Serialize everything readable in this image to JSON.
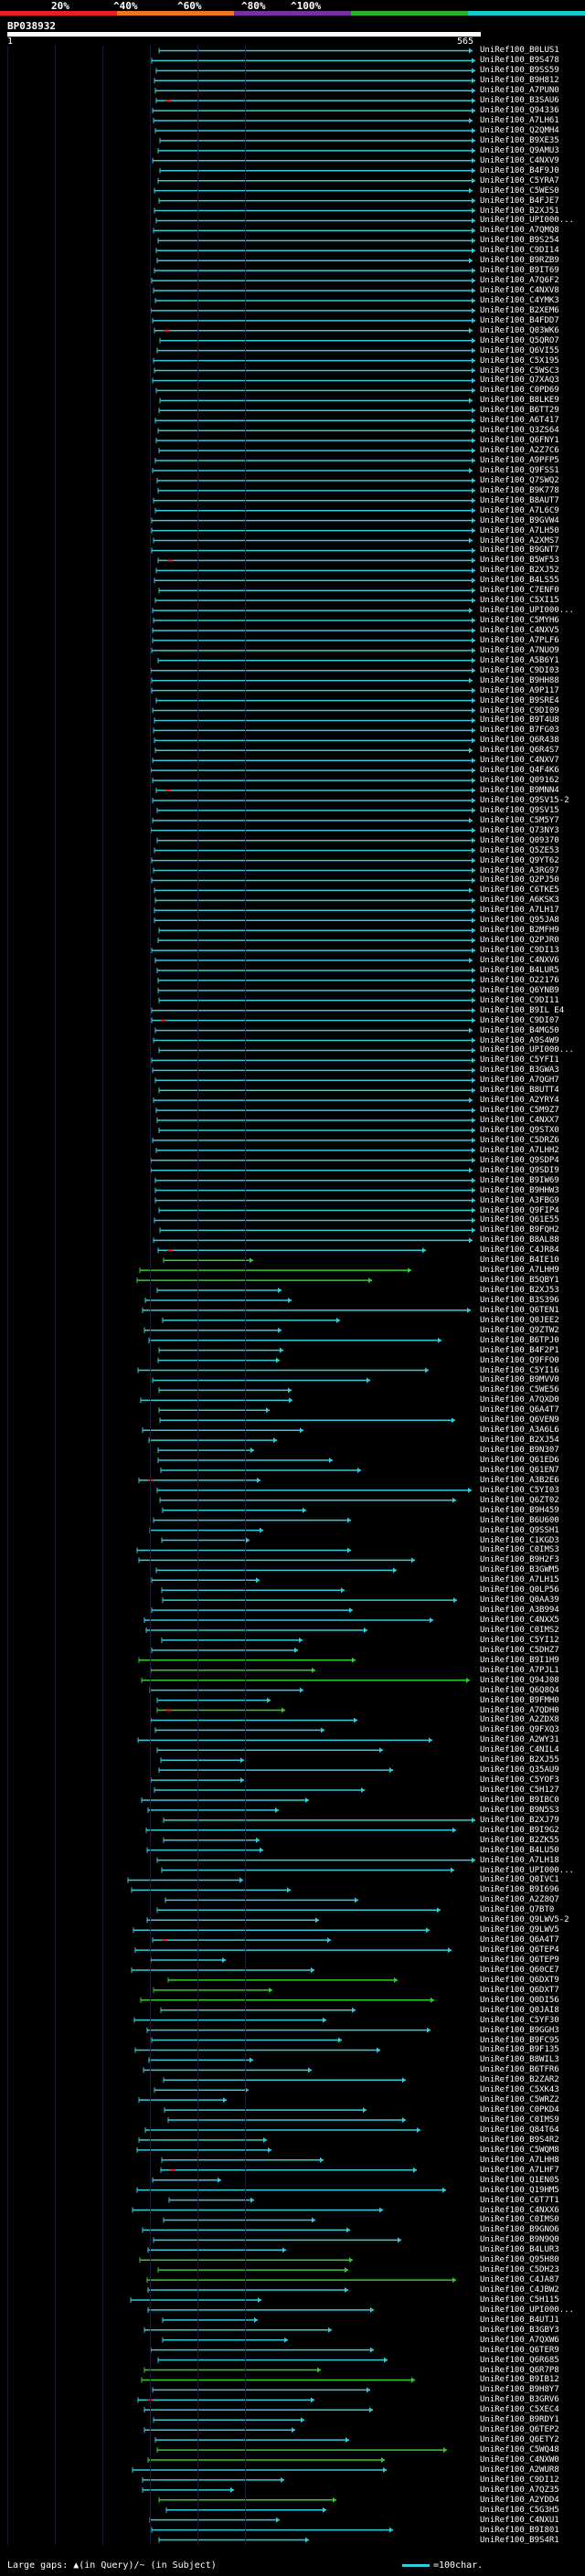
{
  "scale": {
    "ticks": [
      "20%",
      "^40%",
      "^60%",
      "^80%",
      "^100%"
    ],
    "segments": [
      "#e8202a",
      "#ee7722",
      "#7a2fa0",
      "#2ab02a",
      "#18c8cc"
    ]
  },
  "query": {
    "name": "BP038932",
    "start": "1",
    "end": "565"
  },
  "hits": {
    "labels": [
      "UniRef100_B0LUS1",
      "UniRef100_B9S478",
      "UniRef100_B9SS59",
      "UniRef100_B9H812",
      "UniRef100_A7PUN0",
      "UniRef100_B3SAU6",
      "UniRef100_Q94336",
      "UniRef100_A7LH61",
      "UniRef100_Q2QMH4",
      "UniRef100_B9XE35",
      "UniRef100_Q9AMU3",
      "UniRef100_C4NXV9",
      "UniRef100_B4F9J0",
      "UniRef100_C5YRA7",
      "UniRef100_C5WES0",
      "UniRef100_B4FJE7",
      "UniRef100_B2XJ51",
      "UniRef100_UPI000...",
      "UniRef100_A7QMQ8",
      "UniRef100_B9S254",
      "UniRef100_C9DI14",
      "UniRef100_B9RZB9",
      "UniRef100_B9IT69",
      "UniRef100_A7Q6F2",
      "UniRef100_C4NXV8",
      "UniRef100_C4YMK3",
      "UniRef100_B2XEM6",
      "UniRef100_B4FDD7",
      "UniRef100_Q03WK6",
      "UniRef100_Q5QRO7",
      "UniRef100_Q6VI55",
      "UniRef100_C5X195",
      "UniRef100_C5WSC3",
      "UniRef100_Q7XAQ3",
      "UniRef100_C0PD69",
      "UniRef100_B8LKE9",
      "UniRef100_B6TT29",
      "UniRef100_A6T417",
      "UniRef100_Q3ZS64",
      "UniRef100_Q6FNY1",
      "UniRef100_A2Z7C6",
      "UniRef100_A9PFP5",
      "UniRef100_Q9FSS1",
      "UniRef100_Q7SWQ2",
      "UniRef100_B9K778",
      "UniRef100_B8AUT7",
      "UniRef100_A7L6C9",
      "UniRef100_B9GVW4",
      "UniRef100_A7LH50",
      "UniRef100_A2XMS7",
      "UniRef100_B9GNT7",
      "UniRef100_B5WF53",
      "UniRef100_B2XJ52",
      "UniRef100_B4LS55",
      "UniRef100_C7ENF0",
      "UniRef100_C5XI15",
      "UniRef100_UPI000...",
      "UniRef100_C5MYH6",
      "UniRef100_C4NXV5",
      "UniRef100_A7PLF6",
      "UniRef100_A7NUO9",
      "UniRef100_A5B6Y1",
      "UniRef100_C9DI03",
      "UniRef100_B9HH88",
      "UniRef100_A9P117",
      "UniRef100_B9SRE4",
      "UniRef100_C9DI09",
      "UniRef100_B9T4U8",
      "UniRef100_B7FG03",
      "UniRef100_Q6R438",
      "UniRef100_Q6R4S7",
      "UniRef100_C4NXV7",
      "UniRef100_Q4F4K6",
      "UniRef100_Q09162",
      "UniRef100_B9MNN4",
      "UniRef100_Q9SV15-2",
      "UniRef100_Q9SV15",
      "UniRef100_C5M5Y7",
      "UniRef100_Q73NY3",
      "UniRef100_Q09370",
      "UniRef100_Q5ZE53",
      "UniRef100_Q9YT62",
      "UniRef100_A3RG97",
      "UniRef100_Q2PJ50",
      "UniRef100_C6TKE5",
      "UniRef100_A6KSK3",
      "UniRef100_A7LH17",
      "UniRef100_Q95JA8",
      "UniRef100_B2MFH9",
      "UniRef100_Q2PJR0",
      "UniRef100_C9DI13",
      "UniRef100_C4NXV6",
      "UniRef100_B4LUR5",
      "UniRef100_O22176",
      "UniRef100_Q6YNB9",
      "UniRef100_C9DI11",
      "UniRef100_B9IL E4",
      "UniRef100_C9DI07",
      "UniRef100_B4MG50",
      "UniRef100_A9S4W9",
      "UniRef100_UPI000...",
      "UniRef100_C5YFI1",
      "UniRef100_B3GWA3",
      "UniRef100_A7QGH7",
      "UniRef100_B8UTT4",
      "UniRef100_A2YRY4",
      "UniRef100_C5M9Z7",
      "UniRef100_C4NXX7",
      "UniRef100_Q9STX0",
      "UniRef100_C5DRZ6",
      "UniRef100_A7LHH2",
      "UniRef100_Q9SDP4",
      "UniRef100_Q9SDI9",
      "UniRef100_B9IW69",
      "UniRef100_B9HHW3",
      "UniRef100_A3FBG9",
      "UniRef100_Q9FIP4",
      "UniRef100_Q61E55",
      "UniRef100_B9FQH2",
      "UniRef100_B8AL88",
      "UniRef100_C4JR84",
      "UniRef100_B4IE10",
      "UniRef100_A7LHH9",
      "UniRef100_B5QBY1",
      "UniRef100_B2XJ53",
      "UniRef100_B3S396",
      "UniRef100_Q6TEN1",
      "UniRef100_Q0JEE2",
      "UniRef100_Q9ZTW2",
      "UniRef100_B6TPJ0",
      "UniRef100_B4F2P1",
      "UniRef100_Q9FFO0",
      "UniRef100_C5YI16",
      "UniRef100_B9MVV0",
      "UniRef100_C5WE56",
      "UniRef100_A7QXD0",
      "UniRef100_Q6A4T7",
      "UniRef100_Q6VEN9",
      "UniRef100_A3A6L6",
      "UniRef100_B2XJ54",
      "UniRef100_B9N307",
      "UniRef100_Q61ED6",
      "UniRef100_Q61EN7",
      "UniRef100_A3B2E6",
      "UniRef100_C5YI03",
      "UniRef100_Q6ZT02",
      "UniRef100_B9H459",
      "UniRef100_B6U600",
      "UniRef100_Q9SSH1",
      "UniRef100_C1KGD3",
      "UniRef100_C0IMS3",
      "UniRef100_B9H2F3",
      "UniRef100_B3GWM5",
      "UniRef100_A7LH15",
      "UniRef100_Q0LP56",
      "UniRef100_Q0AA39",
      "UniRef100_A3B994",
      "UniRef100_C4NXX5",
      "UniRef100_C0IMS2",
      "UniRef100_C5YI12",
      "UniRef100_C5DHZ7",
      "UniRef100_B9I1H9",
      "UniRef100_A7PJL1",
      "UniRef100_Q94J08",
      "UniRef100_Q6Q8Q4",
      "UniRef100_B9FMH0",
      "UniRef100_A7QDH0",
      "UniRef100_A2ZDX8",
      "UniRef100_Q9FXQ3",
      "UniRef100_A2WY31",
      "UniRef100_C4NIL4",
      "UniRef100_B2XJ55",
      "UniRef100_Q35AU9",
      "UniRef100_C5YOF3",
      "UniRef100_C5H127",
      "UniRef100_B9IBC0",
      "UniRef100_B9N5S3",
      "UniRef100_B2XJ79",
      "UniRef100_B9I9G2",
      "UniRef100_B2ZK55",
      "UniRef100_B4LU50",
      "UniRef100_A7LH18",
      "UniRef100_UPI000...",
      "UniRef100_Q0IVC1",
      "UniRef100_B9I696",
      "UniRef100_A2Z8Q7",
      "UniRef100_Q7BT0",
      "UniRef100_Q9LWV5-2",
      "UniRef100_Q9LWV5",
      "UniRef100_Q6A4T7",
      "UniRef100_Q6TEP4",
      "UniRef100_Q6TEP9",
      "UniRef100_Q60CE7",
      "UniRef100_Q6DXT9",
      "UniRef100_Q6DXT7",
      "UniRef100_Q0DI56",
      "UniRef100_Q0JAI8",
      "UniRef100_C5YF30",
      "UniRef100_B9GGH3",
      "UniRef100_B9FC95",
      "UniRef100_B9F135",
      "UniRef100_B8WIL3",
      "UniRef100_B6TFR6",
      "UniRef100_B2ZAR2",
      "UniRef100_C5XK43",
      "UniRef100_C5WRZ2",
      "UniRef100_C0PKD4",
      "UniRef100_C0IMS9",
      "UniRef100_Q84T64",
      "UniRef100_B9S4R2",
      "UniRef100_C5WQM8",
      "UniRef100_A7LHH8",
      "UniRef100_A7LHF7",
      "UniRef100_Q1EN05",
      "UniRef100_Q19HM5",
      "UniRef100_C6T7T1",
      "UniRef100_C4NXX6",
      "UniRef100_C0IMS0",
      "UniRef100_B9GNO6",
      "UniRef100_B9N9Q0",
      "UniRef100_B4LUR3",
      "UniRef100_Q95H80",
      "UniRef100_C5DH23",
      "UniRef100_C4JA87",
      "UniRef100_C4JBW2",
      "UniRef100_C5H115",
      "UniRef100_UPI000...",
      "UniRef100_B4UTJ1",
      "UniRef100_B3GBY3",
      "UniRef100_A7QXW6",
      "UniRef100_Q6TER9",
      "UniRef100_Q6R685",
      "UniRef100_Q6R7P8",
      "UniRef100_B9IB12",
      "UniRef100_B9H8Y7",
      "UniRef100_B3GRV6",
      "UniRef100_C5XEC4",
      "UniRef100_B9RDY1",
      "UniRef100_Q6TEP2",
      "UniRef100_Q6ETY2",
      "UniRef100_C5WQ48",
      "UniRef100_C4NXW0",
      "UniRef100_A2WUR8",
      "UniRef100_C9DI12",
      "UniRef100_A7QZ35",
      "UniRef100_A2YDD4",
      "UniRef100_C5G3H5",
      "UniRef100_C4NXU1",
      "UniRef100_B9I801",
      "UniRef100_B9S4R1"
    ]
  },
  "footer": {
    "text": "Large gaps: ▲(in Query)/~ (in Subject)"
  },
  "legend": {
    "text": "=100char."
  },
  "colors": {
    "cyan": "#33ccdd",
    "green": "#33cc33",
    "red": "#ee2222",
    "grid": "#1a1a33"
  }
}
